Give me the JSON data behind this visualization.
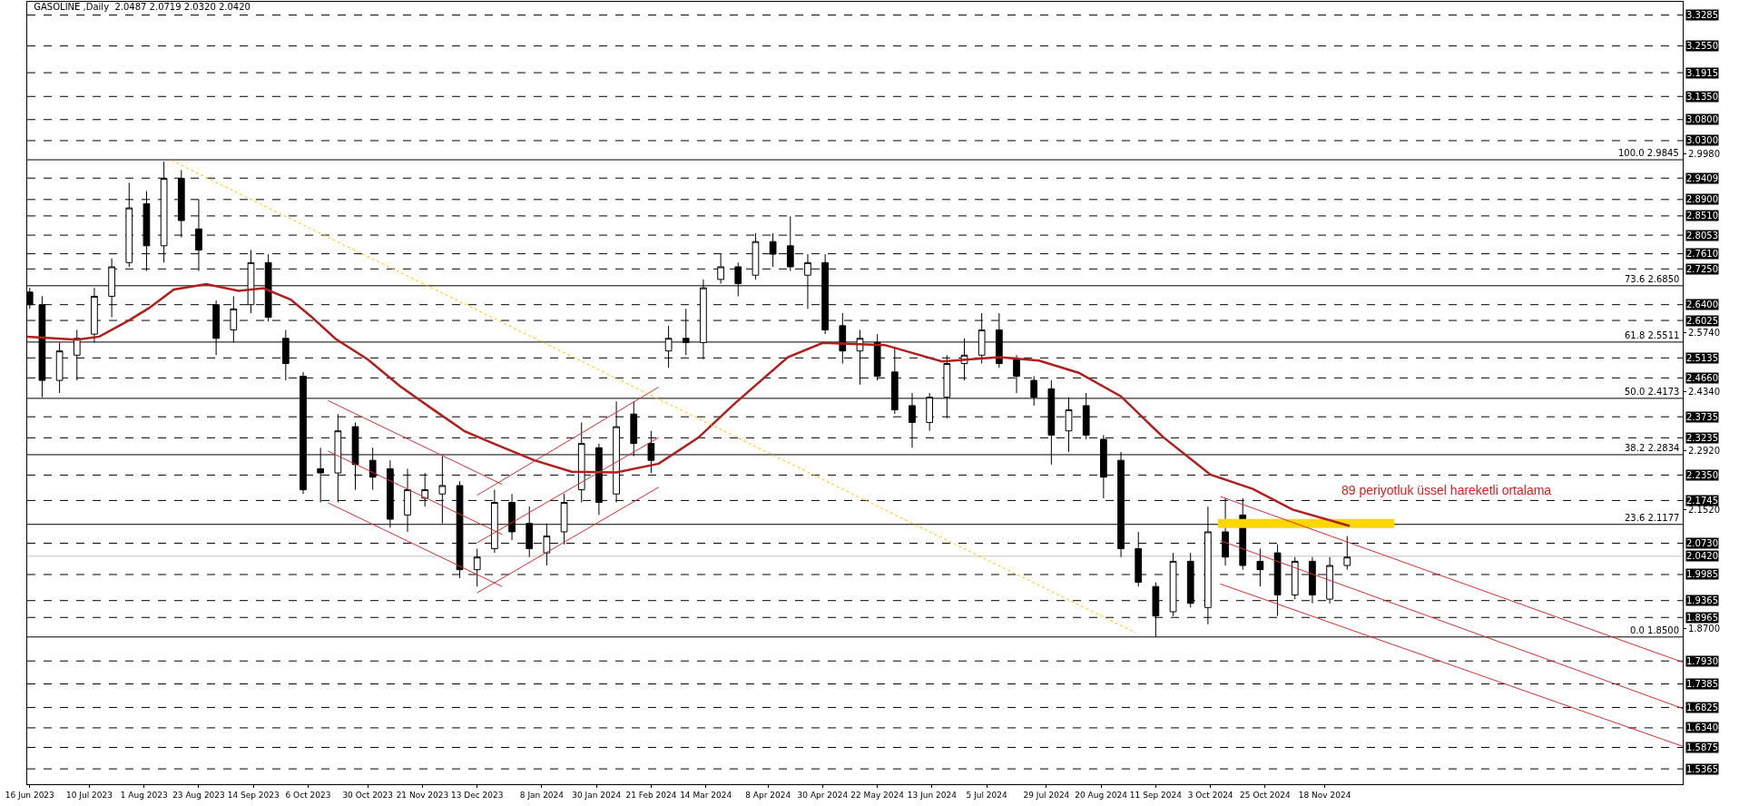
{
  "chart_data": {
    "type": "candlestick",
    "title": "GASOLINE ,Daily  2.0487 2.0719 2.0320 2.0420",
    "color": "#000000",
    "x": [
      "2023-06-16",
      "2023-06-21",
      "2023-06-28",
      "2023-07-05",
      "2023-07-12",
      "2023-07-19",
      "2023-07-26",
      "2023-08-02",
      "2023-08-09",
      "2023-08-16",
      "2023-08-23",
      "2023-08-30",
      "2023-09-06",
      "2023-09-13",
      "2023-09-20",
      "2023-09-27",
      "2023-10-04",
      "2023-10-11",
      "2023-10-18",
      "2023-10-25",
      "2023-11-01",
      "2023-11-08",
      "2023-11-15",
      "2023-11-22",
      "2023-11-29",
      "2023-12-06",
      "2023-12-13",
      "2023-12-20",
      "2023-12-27",
      "2024-01-03",
      "2024-01-10",
      "2024-01-17",
      "2024-01-24",
      "2024-01-31",
      "2024-02-07",
      "2024-02-14",
      "2024-02-21",
      "2024-02-28",
      "2024-03-06",
      "2024-03-13",
      "2024-03-20",
      "2024-03-27",
      "2024-04-03",
      "2024-04-10",
      "2024-04-17",
      "2024-04-24",
      "2024-05-01",
      "2024-05-08",
      "2024-05-15",
      "2024-05-22",
      "2024-05-29",
      "2024-06-05",
      "2024-06-12",
      "2024-06-19",
      "2024-06-26",
      "2024-07-03",
      "2024-07-10",
      "2024-07-17",
      "2024-07-24",
      "2024-07-31",
      "2024-08-07",
      "2024-08-14",
      "2024-08-21",
      "2024-08-28",
      "2024-09-04",
      "2024-09-11",
      "2024-09-18",
      "2024-09-25",
      "2024-10-02",
      "2024-10-09",
      "2024-10-16",
      "2024-10-23",
      "2024-10-30",
      "2024-11-06",
      "2024-11-13",
      "2024-11-20",
      "2024-11-27"
    ],
    "ohlc": [
      [
        2.67,
        2.68,
        2.63,
        2.64
      ],
      [
        2.64,
        2.66,
        2.42,
        2.46
      ],
      [
        2.46,
        2.55,
        2.43,
        2.53
      ],
      [
        2.52,
        2.58,
        2.46,
        2.56
      ],
      [
        2.57,
        2.68,
        2.55,
        2.66
      ],
      [
        2.66,
        2.75,
        2.61,
        2.73
      ],
      [
        2.74,
        2.93,
        2.73,
        2.87
      ],
      [
        2.88,
        2.91,
        2.72,
        2.78
      ],
      [
        2.78,
        2.98,
        2.74,
        2.94
      ],
      [
        2.94,
        2.96,
        2.8,
        2.84
      ],
      [
        2.82,
        2.89,
        2.72,
        2.77
      ],
      [
        2.64,
        2.65,
        2.52,
        2.56
      ],
      [
        2.58,
        2.66,
        2.55,
        2.63
      ],
      [
        2.64,
        2.77,
        2.62,
        2.74
      ],
      [
        2.74,
        2.76,
        2.6,
        2.61
      ],
      [
        2.56,
        2.58,
        2.46,
        2.5
      ],
      [
        2.47,
        2.48,
        2.19,
        2.2
      ],
      [
        2.25,
        2.3,
        2.17,
        2.24
      ],
      [
        2.24,
        2.38,
        2.17,
        2.34
      ],
      [
        2.35,
        2.36,
        2.2,
        2.26
      ],
      [
        2.27,
        2.3,
        2.2,
        2.23
      ],
      [
        2.25,
        2.27,
        2.11,
        2.13
      ],
      [
        2.14,
        2.25,
        2.1,
        2.2
      ],
      [
        2.18,
        2.24,
        2.16,
        2.2
      ],
      [
        2.19,
        2.28,
        2.12,
        2.21
      ],
      [
        2.21,
        2.22,
        1.99,
        2.01
      ],
      [
        2.01,
        2.06,
        1.97,
        2.04
      ],
      [
        2.06,
        2.2,
        2.05,
        2.17
      ],
      [
        2.17,
        2.19,
        2.08,
        2.1
      ],
      [
        2.12,
        2.16,
        2.04,
        2.06
      ],
      [
        2.05,
        2.12,
        2.02,
        2.09
      ],
      [
        2.1,
        2.19,
        2.07,
        2.17
      ],
      [
        2.2,
        2.36,
        2.17,
        2.31
      ],
      [
        2.3,
        2.31,
        2.14,
        2.17
      ],
      [
        2.19,
        2.41,
        2.17,
        2.35
      ],
      [
        2.38,
        2.41,
        2.28,
        2.31
      ],
      [
        2.31,
        2.34,
        2.24,
        2.27
      ],
      [
        2.53,
        2.59,
        2.49,
        2.56
      ],
      [
        2.56,
        2.63,
        2.52,
        2.55
      ],
      [
        2.55,
        2.7,
        2.51,
        2.68
      ],
      [
        2.7,
        2.76,
        2.69,
        2.73
      ],
      [
        2.73,
        2.74,
        2.66,
        2.69
      ],
      [
        2.71,
        2.81,
        2.7,
        2.79
      ],
      [
        2.79,
        2.81,
        2.73,
        2.76
      ],
      [
        2.78,
        2.85,
        2.72,
        2.73
      ],
      [
        2.71,
        2.76,
        2.63,
        2.74
      ],
      [
        2.74,
        2.76,
        2.57,
        2.58
      ],
      [
        2.59,
        2.62,
        2.5,
        2.53
      ],
      [
        2.53,
        2.58,
        2.45,
        2.56
      ],
      [
        2.55,
        2.57,
        2.46,
        2.47
      ],
      [
        2.48,
        2.54,
        2.38,
        2.39
      ],
      [
        2.4,
        2.43,
        2.3,
        2.36
      ],
      [
        2.36,
        2.43,
        2.34,
        2.42
      ],
      [
        2.42,
        2.52,
        2.37,
        2.5
      ],
      [
        2.5,
        2.56,
        2.46,
        2.52
      ],
      [
        2.52,
        2.62,
        2.5,
        2.58
      ],
      [
        2.58,
        2.62,
        2.49,
        2.5
      ],
      [
        2.51,
        2.52,
        2.43,
        2.47
      ],
      [
        2.46,
        2.47,
        2.4,
        2.42
      ],
      [
        2.44,
        2.46,
        2.26,
        2.33
      ],
      [
        2.34,
        2.42,
        2.29,
        2.39
      ],
      [
        2.4,
        2.43,
        2.32,
        2.33
      ],
      [
        2.32,
        2.33,
        2.18,
        2.23
      ],
      [
        2.27,
        2.29,
        2.04,
        2.06
      ],
      [
        2.06,
        2.1,
        1.97,
        1.98
      ],
      [
        1.97,
        1.98,
        1.85,
        1.9
      ],
      [
        1.91,
        2.05,
        1.9,
        2.03
      ],
      [
        2.03,
        2.05,
        1.92,
        1.93
      ],
      [
        1.92,
        2.16,
        1.88,
        2.1
      ],
      [
        2.1,
        2.18,
        2.02,
        2.04
      ],
      [
        2.14,
        2.18,
        2.01,
        2.02
      ],
      [
        2.03,
        2.06,
        1.97,
        2.01
      ],
      [
        2.05,
        2.07,
        1.9,
        1.95
      ],
      [
        1.95,
        2.04,
        1.94,
        2.03
      ],
      [
        2.03,
        2.04,
        1.93,
        1.95
      ],
      [
        1.94,
        2.04,
        1.93,
        2.02
      ],
      [
        2.02,
        2.09,
        2.01,
        2.04
      ]
    ],
    "series": [
      {
        "type": "line",
        "color": "#ffd700",
        "line_style": "solid",
        "x": [
          "2024-10-06",
          "2024-12-16"
        ],
        "values": [
          2.12,
          2.12
        ]
      },
      {
        "type": "line",
        "color": "#b01e1e",
        "line_style": "solid",
        "x": [
          "2023-06-15",
          "2023-07-05",
          "2023-07-14",
          "2023-07-26",
          "2023-08-03",
          "2023-08-13",
          "2023-08-26",
          "2023-09-08",
          "2023-09-18",
          "2023-09-29",
          "2023-10-07",
          "2023-10-17",
          "2023-10-30",
          "2023-11-12",
          "2023-11-25",
          "2023-12-08",
          "2023-12-20",
          "2024-01-05",
          "2024-01-20",
          "2024-02-07",
          "2024-02-24",
          "2024-03-11",
          "2024-03-26",
          "2024-04-16",
          "2024-04-30",
          "2024-05-25",
          "2024-06-17",
          "2024-07-10",
          "2024-07-26",
          "2024-08-11",
          "2024-08-28",
          "2024-09-14",
          "2024-10-03",
          "2024-10-20",
          "2024-11-05",
          "2024-11-28"
        ],
        "values": [
          2.564,
          2.557,
          2.564,
          2.603,
          2.632,
          2.676,
          2.689,
          2.673,
          2.679,
          2.652,
          2.613,
          2.559,
          2.51,
          2.446,
          2.392,
          2.339,
          2.309,
          2.27,
          2.243,
          2.241,
          2.262,
          2.324,
          2.407,
          2.515,
          2.549,
          2.544,
          2.505,
          2.515,
          2.507,
          2.478,
          2.422,
          2.325,
          2.236,
          2.202,
          2.153,
          2.114
        ]
      },
      {
        "type": "line",
        "color": "#d03030",
        "line_style": "solid",
        "x": [
          "2023-10-14",
          "2023-12-23"
        ],
        "values": [
          2.412,
          2.213
        ]
      },
      {
        "type": "line",
        "color": "#d03030",
        "line_style": "solid",
        "x": [
          "2023-10-14",
          "2023-12-23"
        ],
        "values": [
          2.292,
          2.094
        ]
      },
      {
        "type": "line",
        "color": "#d03030",
        "line_style": "solid",
        "x": [
          "2023-10-14",
          "2023-12-23"
        ],
        "values": [
          2.169,
          1.97
        ]
      },
      {
        "type": "line",
        "color": "#d03030",
        "line_style": "solid",
        "x": [
          "2023-12-13",
          "2024-02-24"
        ],
        "values": [
          2.187,
          2.444
        ]
      },
      {
        "type": "line",
        "color": "#d03030",
        "line_style": "solid",
        "x": [
          "2023-12-13",
          "2024-02-24"
        ],
        "values": [
          2.074,
          2.324
        ]
      },
      {
        "type": "line",
        "color": "#d03030",
        "line_style": "solid",
        "x": [
          "2023-12-13",
          "2024-02-24"
        ],
        "values": [
          1.955,
          2.206
        ]
      },
      {
        "type": "line",
        "color": "#d03030",
        "line_style": "solid",
        "x": [
          "2024-10-07",
          "2025-04-11"
        ],
        "values": [
          2.184,
          1.79
        ]
      },
      {
        "type": "line",
        "color": "#d03030",
        "line_style": "solid",
        "x": [
          "2024-10-07",
          "2025-04-11"
        ],
        "values": [
          2.079,
          1.68
        ]
      },
      {
        "type": "line",
        "color": "#d03030",
        "line_style": "solid",
        "x": [
          "2024-10-07",
          "2025-04-11"
        ],
        "values": [
          1.976,
          1.59
        ]
      },
      {
        "type": "line",
        "color": "#f5c400",
        "line_style": "dotted",
        "x": [
          "2023-08-12",
          "2024-09-03"
        ],
        "values": [
          2.983,
          1.86
        ]
      }
    ],
    "ref_lines": [
      {
        "axis": "y",
        "value": 3.3285,
        "label": "3.3285",
        "line_style": "dashed",
        "color": "#000000"
      },
      {
        "axis": "y",
        "value": 3.255,
        "label": "3.2550",
        "line_style": "dashed",
        "color": "#000000"
      },
      {
        "axis": "y",
        "value": 3.1915,
        "label": "3.1915",
        "line_style": "dashed",
        "color": "#000000"
      },
      {
        "axis": "y",
        "value": 3.135,
        "label": "3.1350",
        "line_style": "dashed",
        "color": "#000000"
      },
      {
        "axis": "y",
        "value": 3.08,
        "label": "3.0800",
        "line_style": "dashed",
        "color": "#000000"
      },
      {
        "axis": "y",
        "value": 3.03,
        "label": "3.0300",
        "line_style": "dashed",
        "color": "#000000"
      },
      {
        "axis": "y",
        "value": 2.9845,
        "label": "100.0 2.9845",
        "line_style": "solid",
        "color": "#000000"
      },
      {
        "axis": "y",
        "value": 2.9409,
        "label": "2.9409",
        "line_style": "dashed",
        "color": "#000000"
      },
      {
        "axis": "y",
        "value": 2.89,
        "label": "2.8900",
        "line_style": "dashed",
        "color": "#000000"
      },
      {
        "axis": "y",
        "value": 2.851,
        "label": "2.8510",
        "line_style": "dashed",
        "color": "#000000"
      },
      {
        "axis": "y",
        "value": 2.8053,
        "label": "2.8053",
        "line_style": "dashed",
        "color": "#000000"
      },
      {
        "axis": "y",
        "value": 2.761,
        "label": "2.7610",
        "line_style": "dashed",
        "color": "#000000"
      },
      {
        "axis": "y",
        "value": 2.725,
        "label": "2.7250",
        "line_style": "dashed",
        "color": "#000000"
      },
      {
        "axis": "y",
        "value": 2.685,
        "label": "73.6 2.6850",
        "line_style": "solid",
        "color": "#000000"
      },
      {
        "axis": "y",
        "value": 2.64,
        "label": "2.6400",
        "line_style": "dashed",
        "color": "#000000"
      },
      {
        "axis": "y",
        "value": 2.6025,
        "label": "2.6025",
        "line_style": "dashed",
        "color": "#000000"
      },
      {
        "axis": "y",
        "value": 2.5511,
        "label": "61.8 2.5511",
        "line_style": "solid",
        "color": "#000000"
      },
      {
        "axis": "y",
        "value": 2.5135,
        "label": "2.5135",
        "line_style": "dashed",
        "color": "#000000"
      },
      {
        "axis": "y",
        "value": 2.466,
        "label": "2.4660",
        "line_style": "dashed",
        "color": "#000000"
      },
      {
        "axis": "y",
        "value": 2.4173,
        "label": "50.0 2.4173",
        "line_style": "solid",
        "color": "#000000"
      },
      {
        "axis": "y",
        "value": 2.3735,
        "label": "2.3735",
        "line_style": "dashed",
        "color": "#000000"
      },
      {
        "axis": "y",
        "value": 2.3235,
        "label": "2.3235",
        "line_style": "dashed",
        "color": "#000000"
      },
      {
        "axis": "y",
        "value": 2.2834,
        "label": "38.2 2.2834",
        "line_style": "solid",
        "color": "#000000"
      },
      {
        "axis": "y",
        "value": 2.235,
        "label": "2.2350",
        "line_style": "dashed",
        "color": "#000000"
      },
      {
        "axis": "y",
        "value": 2.1745,
        "label": "2.1745",
        "line_style": "dashed",
        "color": "#000000"
      },
      {
        "axis": "y",
        "value": 2.1177,
        "label": "23.6 2.1177",
        "line_style": "solid",
        "color": "#000000"
      },
      {
        "axis": "y",
        "value": 2.073,
        "label": "2.0730",
        "line_style": "dashed",
        "color": "#000000"
      },
      {
        "axis": "y",
        "value": 2.042,
        "label": "2.0420",
        "line_style": "solid",
        "color": "#c0c0c0"
      },
      {
        "axis": "y",
        "value": 1.9985,
        "label": "1.9985",
        "line_style": "dashed",
        "color": "#000000"
      },
      {
        "axis": "y",
        "value": 1.9365,
        "label": "1.9365",
        "line_style": "dashed",
        "color": "#000000"
      },
      {
        "axis": "y",
        "value": 1.8965,
        "label": "1.8965",
        "line_style": "dashed",
        "color": "#000000"
      },
      {
        "axis": "y",
        "value": 1.85,
        "label": "0.0 1.8500",
        "line_style": "solid",
        "color": "#000000"
      },
      {
        "axis": "y",
        "value": 1.793,
        "label": "1.7930",
        "line_style": "dashed",
        "color": "#000000"
      },
      {
        "axis": "y",
        "value": 1.7385,
        "label": "1.7385",
        "line_style": "dashed",
        "color": "#000000"
      },
      {
        "axis": "y",
        "value": 1.6825,
        "label": "1.6825",
        "line_style": "dashed",
        "color": "#000000"
      },
      {
        "axis": "y",
        "value": 1.634,
        "label": "1.6340",
        "line_style": "dashed",
        "color": "#000000"
      },
      {
        "axis": "y",
        "value": 1.5875,
        "label": "1.5875",
        "line_style": "dashed",
        "color": "#000000"
      },
      {
        "axis": "y",
        "value": 1.5365,
        "label": "1.5365",
        "line_style": "dashed",
        "color": "#000000"
      }
    ],
    "annotations": [
      "89 periyotluk üssel hareketli ortalama"
    ],
    "xlim": [
      "2023-06-15",
      "2025-04-11"
    ],
    "xticks": [
      {
        "value": "2023-06-16",
        "label": "16 Jun 2023"
      },
      {
        "value": "2023-07-10",
        "label": "10 Jul 2023"
      },
      {
        "value": "2023-08-01",
        "label": "1 Aug 2023"
      },
      {
        "value": "2023-08-23",
        "label": "23 Aug 2023"
      },
      {
        "value": "2023-09-14",
        "label": "14 Sep 2023"
      },
      {
        "value": "2023-10-06",
        "label": "6 Oct 2023"
      },
      {
        "value": "2023-10-30",
        "label": "30 Oct 2023"
      },
      {
        "value": "2023-11-21",
        "label": "21 Nov 2023"
      },
      {
        "value": "2023-12-13",
        "label": "13 Dec 2023"
      },
      {
        "value": "2024-01-08",
        "label": "8 Jan 2024"
      },
      {
        "value": "2024-01-30",
        "label": "30 Jan 2024"
      },
      {
        "value": "2024-02-21",
        "label": "21 Feb 2024"
      },
      {
        "value": "2024-03-14",
        "label": "14 Mar 2024"
      },
      {
        "value": "2024-04-08",
        "label": "8 Apr 2024"
      },
      {
        "value": "2024-04-30",
        "label": "30 Apr 2024"
      },
      {
        "value": "2024-05-22",
        "label": "22 May 2024"
      },
      {
        "value": "2024-06-13",
        "label": "13 Jun 2024"
      },
      {
        "value": "2024-07-05",
        "label": "5 Jul 2024"
      },
      {
        "value": "2024-07-29",
        "label": "29 Jul 2024"
      },
      {
        "value": "2024-08-20",
        "label": "20 Aug 2024"
      },
      {
        "value": "2024-09-11",
        "label": "11 Sep 2024"
      },
      {
        "value": "2024-10-03",
        "label": "3 Oct 2024"
      },
      {
        "value": "2024-10-25",
        "label": "25 Oct 2024"
      },
      {
        "value": "2024-11-18",
        "label": "18 Nov 2024"
      }
    ],
    "ylim": [
      1.5,
      3.36
    ],
    "yticks": [
      {
        "value": 2.998,
        "label": "2.9980"
      },
      {
        "value": 2.574,
        "label": "2.5740"
      },
      {
        "value": 2.434,
        "label": "2.4340"
      },
      {
        "value": 2.292,
        "label": "2.2920"
      },
      {
        "value": 2.152,
        "label": "2.1520"
      },
      {
        "value": 1.87,
        "label": "1.8700"
      }
    ],
    "grid": false
  }
}
